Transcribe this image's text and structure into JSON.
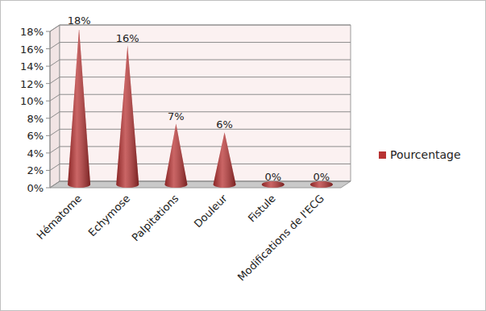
{
  "chart_data": {
    "type": "bar",
    "categories": [
      "Hématome",
      "Echymose",
      "Palpitations",
      "Douleur",
      "Fistule",
      "Modifications de l'ECG"
    ],
    "series": [
      {
        "name": "Pourcentage",
        "color": "#b83232",
        "values": [
          18,
          16,
          7,
          6,
          0,
          0
        ],
        "value_labels": [
          "18%",
          "16%",
          "7%",
          "6%",
          "0%",
          "0%"
        ]
      }
    ],
    "ylim": [
      0,
      18
    ],
    "yticks": [
      {
        "value": 0,
        "label": "0%"
      },
      {
        "value": 2,
        "label": "2%"
      },
      {
        "value": 4,
        "label": "4%"
      },
      {
        "value": 6,
        "label": "6%"
      },
      {
        "value": 8,
        "label": "8%"
      },
      {
        "value": 10,
        "label": "10%"
      },
      {
        "value": 12,
        "label": "12%"
      },
      {
        "value": 14,
        "label": "14%"
      },
      {
        "value": 16,
        "label": "16%"
      },
      {
        "value": 18,
        "label": "18%"
      }
    ],
    "grid": true,
    "data_labels": true,
    "legend": "right"
  }
}
